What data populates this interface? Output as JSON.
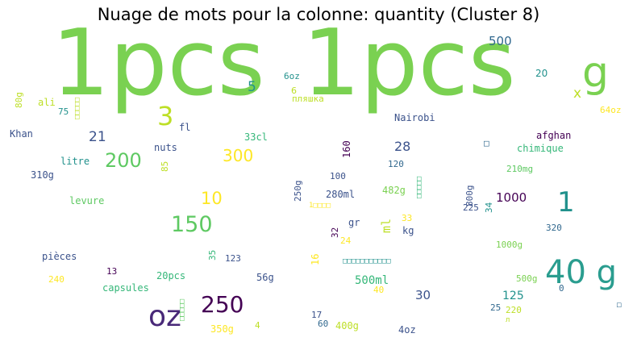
{
  "title": "Nuage de mots pour la colonne: quantity (Cluster 8)",
  "colors": {
    "lime": "#7ad151",
    "green": "#5ec962",
    "teal": "#21918c",
    "teal2": "#2a9d8f",
    "blue": "#3b528b",
    "slate": "#31688e",
    "purple": "#440154",
    "violet": "#482878",
    "yellow": "#fde725",
    "olive": "#bddf26",
    "seafoam": "#35b779"
  },
  "words": [
    {
      "text": "1pcs",
      "color": "#7ad151"
    },
    {
      "text": "1pcs",
      "color": "#7ad151"
    },
    {
      "text": "g",
      "color": "#7ad151"
    },
    {
      "text": "40 g",
      "color": "#2a9d8f"
    },
    {
      "text": "oz",
      "color": "#482878"
    },
    {
      "text": "250",
      "color": "#440154"
    },
    {
      "text": "150",
      "color": "#5ec962"
    },
    {
      "text": "200",
      "color": "#5ec962"
    },
    {
      "text": "1",
      "color": "#21918c"
    },
    {
      "text": "3",
      "color": "#bddf26"
    },
    {
      "text": "10",
      "color": "#fde725"
    },
    {
      "text": "300",
      "color": "#fde725"
    },
    {
      "text": "500",
      "color": "#31688e"
    },
    {
      "text": "5",
      "color": "#21918c"
    },
    {
      "text": "x",
      "color": "#bddf26"
    },
    {
      "text": "20",
      "color": "#21918c"
    },
    {
      "text": "6oz",
      "color": "#21918c"
    },
    {
      "text": "6",
      "color": "#bddf26"
    },
    {
      "text": "пляшка",
      "color": "#bddf26"
    },
    {
      "text": "64oz",
      "color": "#fde725"
    },
    {
      "text": "80g",
      "color": "#bddf26"
    },
    {
      "text": "ali",
      "color": "#bddf26"
    },
    {
      "text": "75",
      "color": "#21918c"
    },
    {
      "text": "□□□□□",
      "color": "#bddf26"
    },
    {
      "text": "fl",
      "color": "#3b528b"
    },
    {
      "text": "Nairobi",
      "color": "#3b528b"
    },
    {
      "text": "Khan",
      "color": "#3b528b"
    },
    {
      "text": "21",
      "color": "#3b528b"
    },
    {
      "text": "33cl",
      "color": "#35b779"
    },
    {
      "text": "nuts",
      "color": "#3b528b"
    },
    {
      "text": "160",
      "color": "#440154"
    },
    {
      "text": "28",
      "color": "#3b528b"
    },
    {
      "text": "□",
      "color": "#31688e"
    },
    {
      "text": "afghan",
      "color": "#440154"
    },
    {
      "text": "chimique",
      "color": "#35b779"
    },
    {
      "text": "litre",
      "color": "#21918c"
    },
    {
      "text": "85",
      "color": "#bddf26"
    },
    {
      "text": "310g",
      "color": "#3b528b"
    },
    {
      "text": "120",
      "color": "#31688e"
    },
    {
      "text": "□□□□□",
      "color": "#35b779"
    },
    {
      "text": "210mg",
      "color": "#5ec962"
    },
    {
      "text": "100",
      "color": "#3b528b"
    },
    {
      "text": "250g",
      "color": "#3b528b"
    },
    {
      "text": "280ml",
      "color": "#3b528b"
    },
    {
      "text": "482g",
      "color": "#7ad151"
    },
    {
      "text": "800g",
      "color": "#3b528b"
    },
    {
      "text": "34",
      "color": "#21918c"
    },
    {
      "text": "1000",
      "color": "#440154"
    },
    {
      "text": "levure",
      "color": "#5ec962"
    },
    {
      "text": "1□□□□",
      "color": "#fde725"
    },
    {
      "text": "225",
      "color": "#3b528b"
    },
    {
      "text": "ml",
      "color": "#bddf26"
    },
    {
      "text": "gr",
      "color": "#3b528b"
    },
    {
      "text": "33",
      "color": "#fde725"
    },
    {
      "text": "kg",
      "color": "#3b528b"
    },
    {
      "text": "32",
      "color": "#440154"
    },
    {
      "text": "24",
      "color": "#fde725"
    },
    {
      "text": "320",
      "color": "#31688e"
    },
    {
      "text": "1000g",
      "color": "#7ad151"
    },
    {
      "text": "pièces",
      "color": "#3b528b"
    },
    {
      "text": "35",
      "color": "#35b779"
    },
    {
      "text": "123",
      "color": "#3b528b"
    },
    {
      "text": "16",
      "color": "#fde725"
    },
    {
      "text": "□□□□□□□□□□□",
      "color": "#21918c"
    },
    {
      "text": "13",
      "color": "#440154"
    },
    {
      "text": "20pcs",
      "color": "#35b779"
    },
    {
      "text": "56g",
      "color": "#3b528b"
    },
    {
      "text": "500ml",
      "color": "#35b779"
    },
    {
      "text": "500g",
      "color": "#7ad151"
    },
    {
      "text": "240",
      "color": "#fde725"
    },
    {
      "text": "capsules",
      "color": "#35b779"
    },
    {
      "text": "40",
      "color": "#fde725"
    },
    {
      "text": "30",
      "color": "#3b528b"
    },
    {
      "text": "125",
      "color": "#21918c"
    },
    {
      "text": "0",
      "color": "#31688e"
    },
    {
      "text": "□□□□□",
      "color": "#5ec962"
    },
    {
      "text": "□",
      "color": "#31688e"
    },
    {
      "text": "25",
      "color": "#31688e"
    },
    {
      "text": "220",
      "color": "#bddf26"
    },
    {
      "text": "л",
      "color": "#bddf26"
    },
    {
      "text": "17",
      "color": "#3b528b"
    },
    {
      "text": "350g",
      "color": "#fde725"
    },
    {
      "text": "4",
      "color": "#bddf26"
    },
    {
      "text": "60",
      "color": "#31688e"
    },
    {
      "text": "400g",
      "color": "#bddf26"
    },
    {
      "text": "4oz",
      "color": "#3b528b"
    }
  ]
}
